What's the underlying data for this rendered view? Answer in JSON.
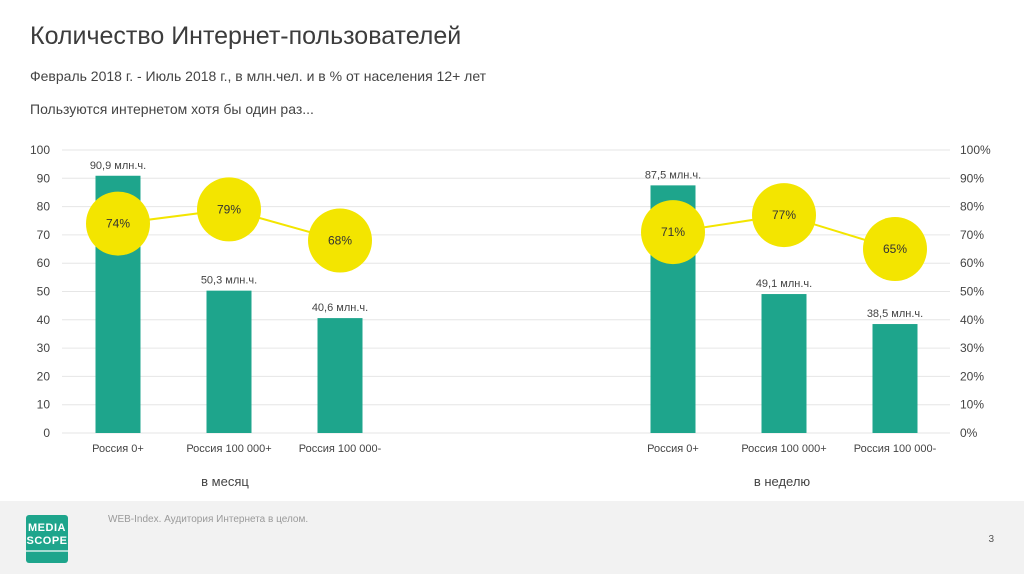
{
  "header": {
    "title": "Количество Интернет-пользователей",
    "subtitle": "Февраль 2018 г. - Июль 2018 г., в млн.чел. и в % от населения 12+ лет",
    "caption": "Пользуются интернетом хотя бы один раз..."
  },
  "footer": {
    "logo_line1": "MEDIA",
    "logo_line2": "SCOPE",
    "source": "WEB-Index. Аудитория Интернета в целом.",
    "page_number": "3"
  },
  "colors": {
    "bar": "#1ea58c",
    "circle": "#f3e500",
    "line": "#f3e500",
    "grid": "#e6e6e6"
  },
  "chart_data": {
    "type": "bar",
    "left_axis": {
      "ylim": [
        0,
        100
      ],
      "ticks": [
        "0",
        "10",
        "20",
        "30",
        "40",
        "50",
        "60",
        "70",
        "80",
        "90",
        "100"
      ]
    },
    "right_axis": {
      "ylim": [
        0,
        100
      ],
      "ticks": [
        "0%",
        "10%",
        "20%",
        "30%",
        "40%",
        "50%",
        "60%",
        "70%",
        "80%",
        "90%",
        "100%"
      ]
    },
    "grid": true,
    "groups": [
      {
        "label": "в месяц",
        "categories": [
          "Россия 0+",
          "Россия 100 000+",
          "Россия 100 000-"
        ],
        "values": [
          90.9,
          50.3,
          40.6
        ],
        "value_labels": [
          "90,9 млн.ч.",
          "50,3 млн.ч.",
          "40,6 млн.ч."
        ],
        "percents": [
          74,
          79,
          68
        ],
        "percent_labels": [
          "74%",
          "79%",
          "68%"
        ]
      },
      {
        "label": "в неделю",
        "categories": [
          "Россия 0+",
          "Россия 100 000+",
          "Россия 100 000-"
        ],
        "values": [
          87.5,
          49.1,
          38.5
        ],
        "value_labels": [
          "87,5 млн.ч.",
          "49,1 млн.ч.",
          "38,5 млн.ч."
        ],
        "percents": [
          71,
          77,
          65
        ],
        "percent_labels": [
          "71%",
          "77%",
          "65%"
        ]
      }
    ]
  }
}
